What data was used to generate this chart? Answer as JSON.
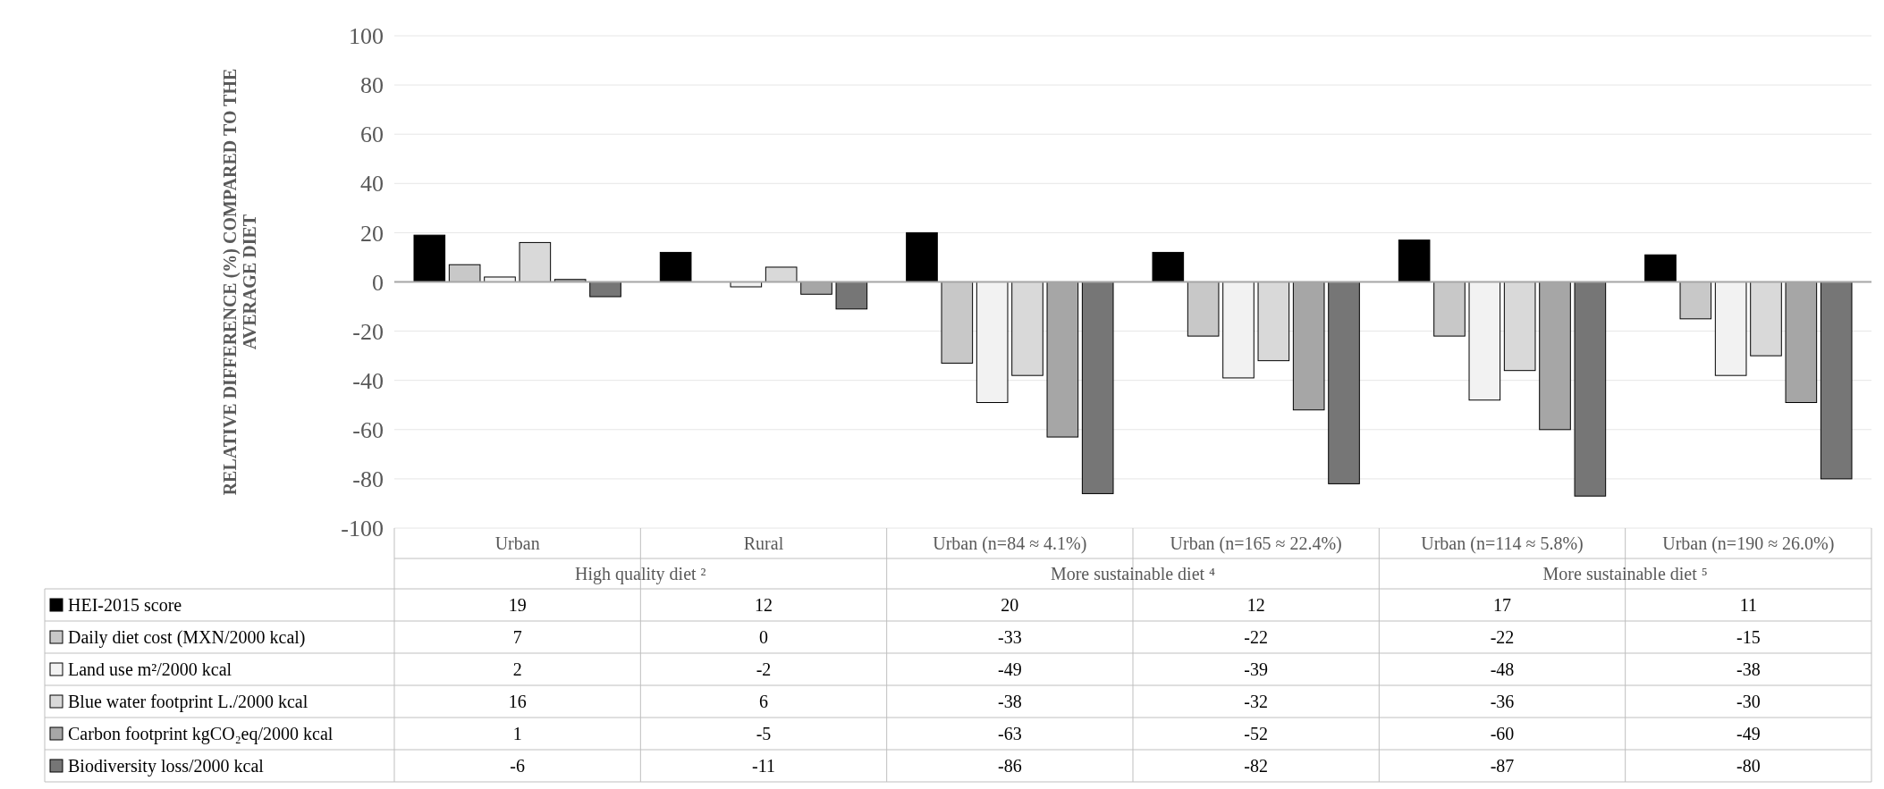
{
  "chart_data": {
    "type": "bar",
    "ylabel": "RELATIVE DIFFERENCE (%) COMPARED TO THE AVERAGE DIET",
    "categories": [
      "Urban",
      "Rural",
      "Urban (n=84 ≈ 4.1%)",
      "Urban (n=165 ≈ 22.4%)",
      "Urban (n=114 ≈ 5.8%)",
      "Urban (n=190 ≈ 26.0%)"
    ],
    "series": [
      {
        "name": "HEI-2015 score",
        "color": "#000000",
        "values": [
          19,
          12,
          20,
          12,
          17,
          11
        ]
      },
      {
        "name": "Daily diet cost (MXN/2000 kcal)",
        "color": "#c8c8c8",
        "values": [
          7,
          0,
          -33,
          -22,
          -22,
          -15
        ]
      },
      {
        "name": "Land use m²/2000 kcal",
        "color": "#f2f2f2",
        "values": [
          2,
          -2,
          -49,
          -39,
          -48,
          -38
        ]
      },
      {
        "name": "Blue water footprint L./2000 kcal",
        "color": "#d9d9d9",
        "values": [
          16,
          6,
          -38,
          -32,
          -36,
          -30
        ]
      },
      {
        "name": "Carbon footprint kgCO₂eq/2000 kcal",
        "color": "#a6a6a6",
        "values": [
          1,
          -5,
          -63,
          -52,
          -60,
          -49
        ]
      },
      {
        "name": "Biodiversity loss/2000 kcal",
        "color": "#767676",
        "values": [
          -6,
          -11,
          -86,
          -82,
          -87,
          -80
        ]
      }
    ],
    "annotations": [
      "High quality diet ²",
      "More sustainable diet ⁴",
      "More sustainable diet ⁵"
    ],
    "ylim": [
      -100,
      100
    ],
    "yticks": [
      -100,
      -80,
      -60,
      -40,
      -20,
      0,
      20,
      40,
      60,
      80,
      100
    ],
    "grid": "y",
    "legend": "bottom",
    "data_labels": true
  }
}
